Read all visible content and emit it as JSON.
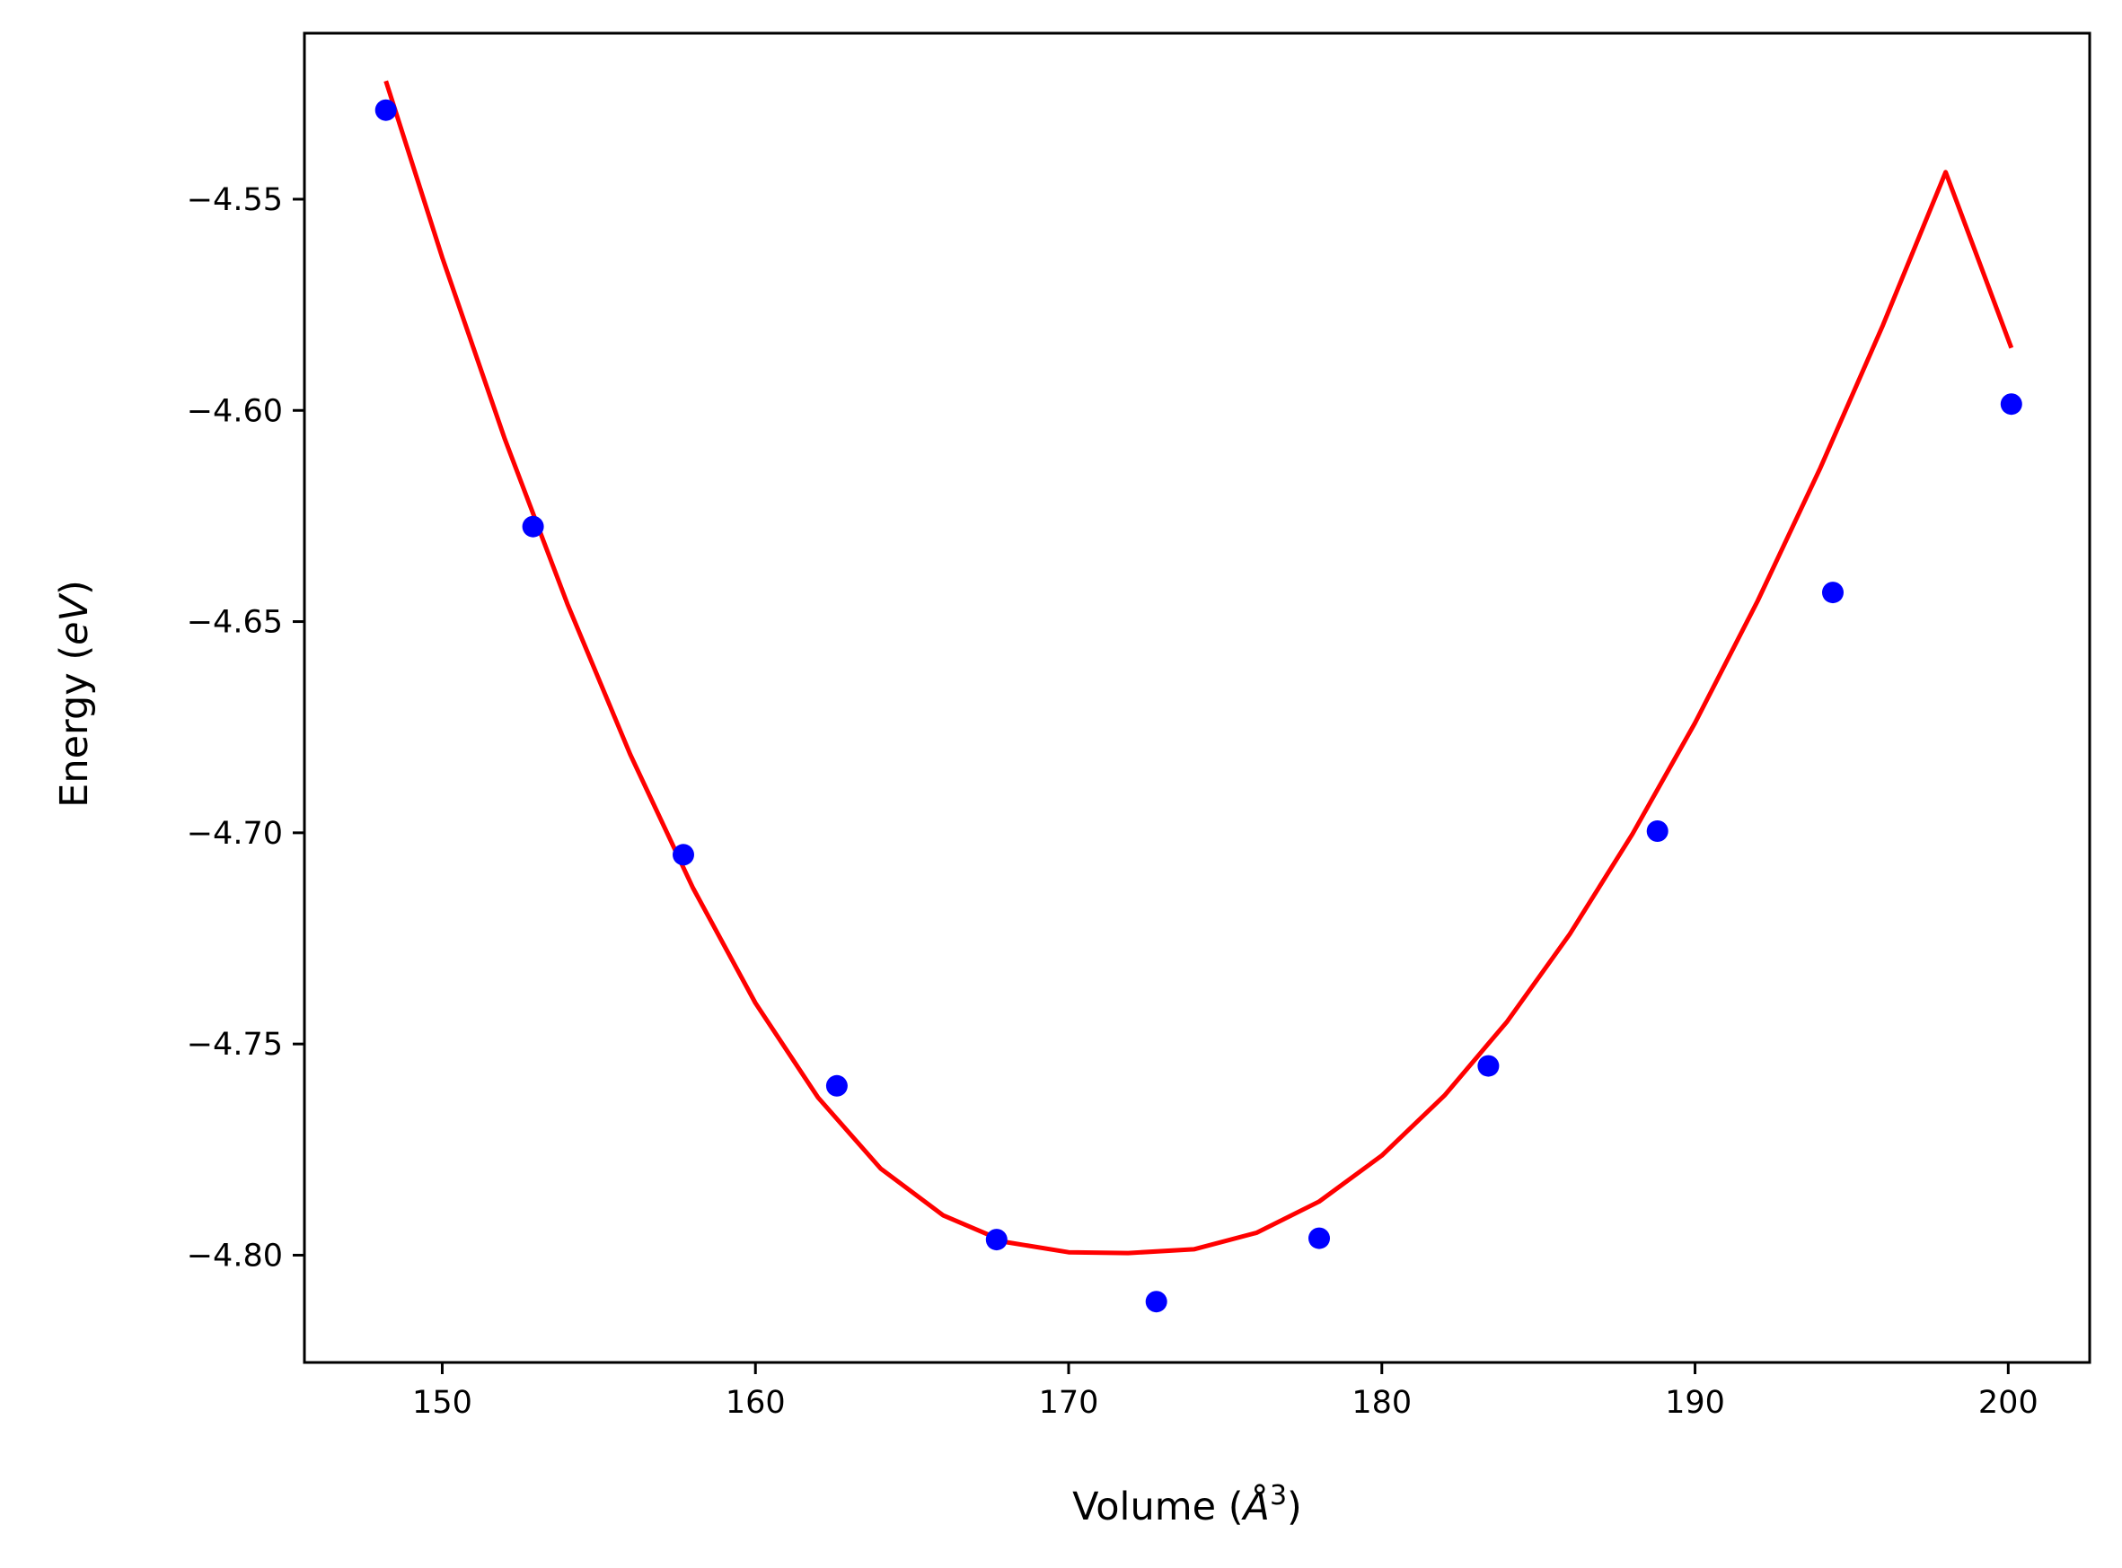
{
  "chart_data": {
    "type": "scatter",
    "xlabel": {
      "pre": "Volume (",
      "var": "Å",
      "sup": "3",
      "post": ")"
    },
    "ylabel": {
      "pre": "Energy (",
      "var": "eV",
      "post": ")"
    },
    "xlim": [
      145.6,
      202.6
    ],
    "ylim": [
      -4.8254,
      -4.5107
    ],
    "xticks": [
      150,
      160,
      170,
      180,
      190,
      200
    ],
    "xtick_labels": [
      "150",
      "160",
      "170",
      "180",
      "190",
      "200"
    ],
    "yticks": [
      -4.55,
      -4.6,
      -4.65,
      -4.7,
      -4.75,
      -4.8
    ],
    "ytick_labels": [
      "−4.55",
      "−4.60",
      "−4.65",
      "−4.70",
      "−4.75",
      "−4.80"
    ],
    "grid": false,
    "legend": false,
    "series": [
      {
        "kind": "points",
        "color": "#0000ff",
        "x": [
          148.2,
          152.9,
          157.7,
          162.6,
          167.7,
          172.8,
          178.0,
          183.4,
          188.8,
          194.4,
          200.1
        ],
        "y": [
          -4.5289,
          -4.6275,
          -4.7052,
          -4.7599,
          -4.7963,
          -4.811,
          -4.796,
          -4.7552,
          -4.6996,
          -4.6431,
          -4.5985
        ]
      },
      {
        "kind": "fit",
        "color": "#ff0000",
        "x": [
          148.2,
          150.0,
          152.0,
          154.0,
          156.0,
          158.0,
          160.0,
          162.0,
          164.0,
          166.0,
          168.0,
          170.0,
          171.9,
          174.0,
          176.0,
          178.0,
          180.0,
          182.0,
          184.0,
          186.0,
          188.0,
          190.0,
          192.0,
          194.0,
          196.0,
          198.0,
          200.1
        ],
        "y": [
          -4.522,
          -4.5638,
          -4.6068,
          -4.6459,
          -4.6814,
          -4.713,
          -4.7403,
          -4.7627,
          -4.7795,
          -4.7906,
          -4.7969,
          -4.7993,
          -4.7995,
          -4.7986,
          -4.7947,
          -4.7873,
          -4.7764,
          -4.7622,
          -4.7447,
          -4.724,
          -4.7003,
          -4.674,
          -4.6451,
          -4.6136,
          -4.5798,
          -4.5436,
          -4.5852
        ]
      }
    ]
  }
}
